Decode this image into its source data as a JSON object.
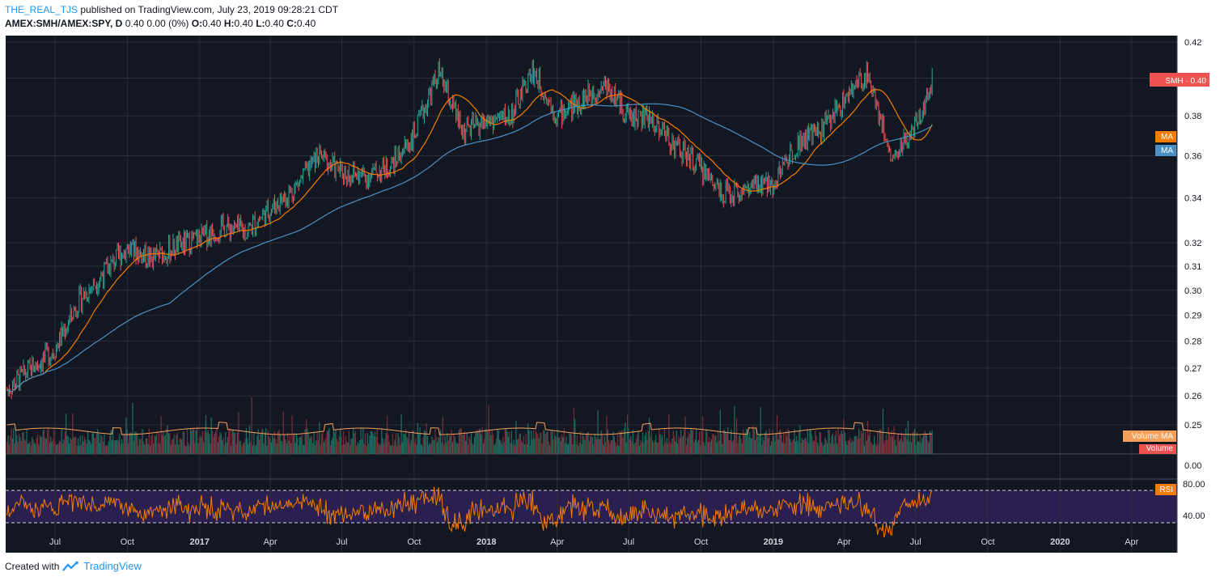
{
  "header": {
    "author": "THE_REAL_TJS",
    "published": "published on TradingView.com, July 23, 2019 09:28:21 CDT",
    "symbol": "AMEX:SMH/AMEX:SPY, D",
    "values": "0.40 0.00 (0%)",
    "open_label": "O:",
    "open": "0.40",
    "high_label": "H:",
    "high": "0.40",
    "low_label": "L:",
    "low": "0.40",
    "close_label": "C:",
    "close": "0.40"
  },
  "footer": {
    "created_with": "Created with",
    "brand": "TradingView"
  },
  "colors": {
    "background": "#131722",
    "grid": "#2a2e39",
    "up": "#26a69a",
    "down": "#ef5350",
    "ma_fast": "#f57c00",
    "ma_slow": "#4a90c4",
    "rsi": "#f57c00",
    "rsi_band": "#2b1f4f",
    "volume_up": "#1e6e66",
    "volume_down": "#7a2f35",
    "volume_ma": "#f5a05a"
  },
  "chart_data": {
    "type": "candlestick",
    "scale": "log",
    "ylim": [
      0.24,
      0.42
    ],
    "price_ticks": [
      "0.42",
      "0.40",
      "0.38",
      "0.36",
      "0.34",
      "0.32",
      "0.31",
      "0.30",
      "0.29",
      "0.28",
      "0.27",
      "0.26",
      "0.25"
    ],
    "price_tick_values": [
      0.42,
      0.4,
      0.38,
      0.36,
      0.34,
      0.32,
      0.31,
      0.3,
      0.29,
      0.28,
      0.27,
      0.26,
      0.25
    ],
    "volume_tick": "0.00",
    "rsi_ticks": [
      "80.00",
      "40.00"
    ],
    "x_labels": [
      "Jul",
      "Oct",
      "2017",
      "Apr",
      "Jul",
      "Oct",
      "2018",
      "Apr",
      "Jul",
      "Oct",
      "2019",
      "Apr",
      "Jul",
      "Oct",
      "2020",
      "Apr"
    ],
    "x_label_dates": [
      "2016-07",
      "2016-10",
      "2017-01",
      "2017-04",
      "2017-07",
      "2017-10",
      "2018-01",
      "2018-04",
      "2018-07",
      "2018-10",
      "2019-01",
      "2019-04",
      "2019-07",
      "2019-10",
      "2020-01",
      "2020-04"
    ],
    "x_range": [
      "2016-05",
      "2020-06"
    ],
    "price_path": [
      [
        "2016-05-01",
        0.262
      ],
      [
        "2016-06-01",
        0.27
      ],
      [
        "2016-07-01",
        0.277
      ],
      [
        "2016-08-01",
        0.296
      ],
      [
        "2016-09-01",
        0.307
      ],
      [
        "2016-10-01",
        0.318
      ],
      [
        "2016-11-01",
        0.313
      ],
      [
        "2016-12-01",
        0.318
      ],
      [
        "2017-01-01",
        0.322
      ],
      [
        "2017-02-01",
        0.327
      ],
      [
        "2017-03-01",
        0.325
      ],
      [
        "2017-04-01",
        0.335
      ],
      [
        "2017-05-01",
        0.344
      ],
      [
        "2017-06-01",
        0.36
      ],
      [
        "2017-07-01",
        0.352
      ],
      [
        "2017-08-01",
        0.35
      ],
      [
        "2017-09-01",
        0.355
      ],
      [
        "2017-10-01",
        0.37
      ],
      [
        "2017-11-01",
        0.403
      ],
      [
        "2017-12-01",
        0.372
      ],
      [
        "2018-01-01",
        0.377
      ],
      [
        "2018-02-01",
        0.38
      ],
      [
        "2018-03-01",
        0.404
      ],
      [
        "2018-04-01",
        0.38
      ],
      [
        "2018-05-01",
        0.388
      ],
      [
        "2018-06-01",
        0.397
      ],
      [
        "2018-07-01",
        0.38
      ],
      [
        "2018-08-01",
        0.378
      ],
      [
        "2018-09-01",
        0.364
      ],
      [
        "2018-10-01",
        0.354
      ],
      [
        "2018-11-01",
        0.342
      ],
      [
        "2018-12-01",
        0.344
      ],
      [
        "2019-01-01",
        0.347
      ],
      [
        "2019-02-01",
        0.367
      ],
      [
        "2019-03-01",
        0.372
      ],
      [
        "2019-04-01",
        0.388
      ],
      [
        "2019-05-01",
        0.403
      ],
      [
        "2019-06-01",
        0.358
      ],
      [
        "2019-07-01",
        0.374
      ],
      [
        "2019-07-23",
        0.4
      ]
    ],
    "series": [
      {
        "name": "SMH",
        "label": "SMH",
        "last": "0.40",
        "color": "#ef5350"
      },
      {
        "name": "MA",
        "label": "MA",
        "last": 0.369,
        "color": "#f57c00"
      },
      {
        "name": "MA",
        "label": "MA",
        "last": 0.364,
        "color": "#4a90c4"
      }
    ],
    "volume": {
      "label": "Volume",
      "ma_label": "Volume MA"
    },
    "rsi": {
      "label": "RSI",
      "upper": 70,
      "lower": 30,
      "last": 78
    }
  }
}
